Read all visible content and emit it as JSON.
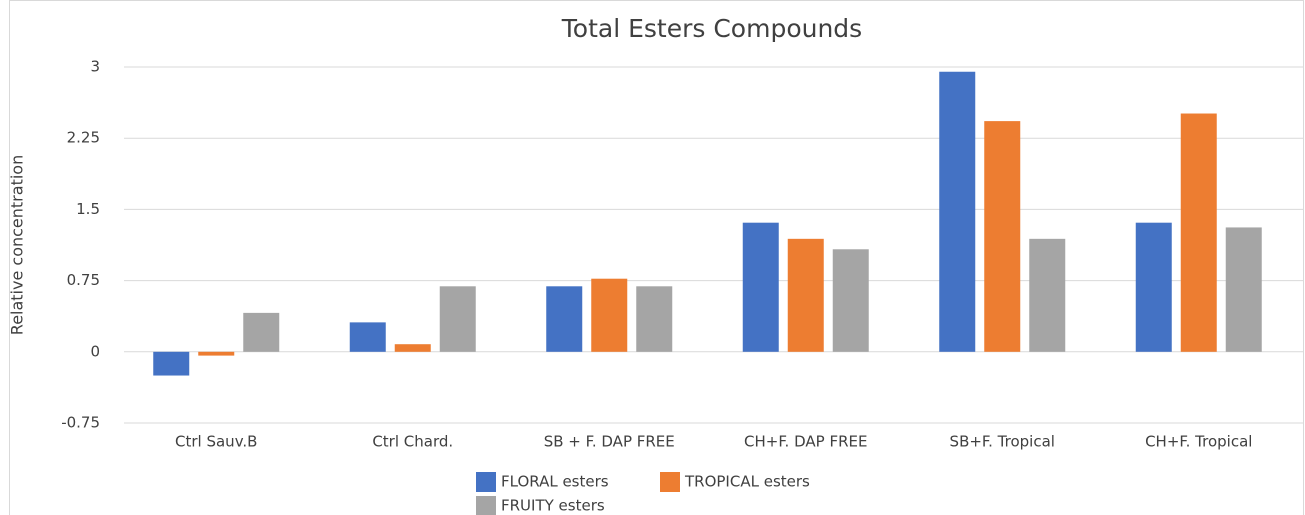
{
  "chart_data": {
    "type": "bar",
    "title": "Total Esters Compounds",
    "y_label": "Relative concentration",
    "categories": [
      "Ctrl Sauv.B",
      "Ctrl Chard.",
      "SB + F. DAP FREE",
      "CH+F. DAP FREE",
      "SB+F. Tropical",
      "CH+F. Tropical"
    ],
    "series": [
      {
        "name": "FLORAL esters",
        "color": "#4472c4",
        "values": [
          -0.25,
          0.31,
          0.69,
          1.36,
          2.95,
          1.36
        ]
      },
      {
        "name": "TROPICAL esters",
        "color": "#ed7d31",
        "values": [
          -0.04,
          0.08,
          0.77,
          1.19,
          2.43,
          2.51
        ]
      },
      {
        "name": "FRUITY esters",
        "color": "#a5a5a5",
        "values": [
          0.41,
          0.69,
          0.69,
          1.08,
          1.19,
          1.31
        ]
      }
    ],
    "ylim": [
      -0.75,
      3
    ],
    "yticks": [
      -0.75,
      0,
      0.75,
      1.5,
      2.25,
      3
    ],
    "grid": true,
    "legend": "bottom"
  }
}
